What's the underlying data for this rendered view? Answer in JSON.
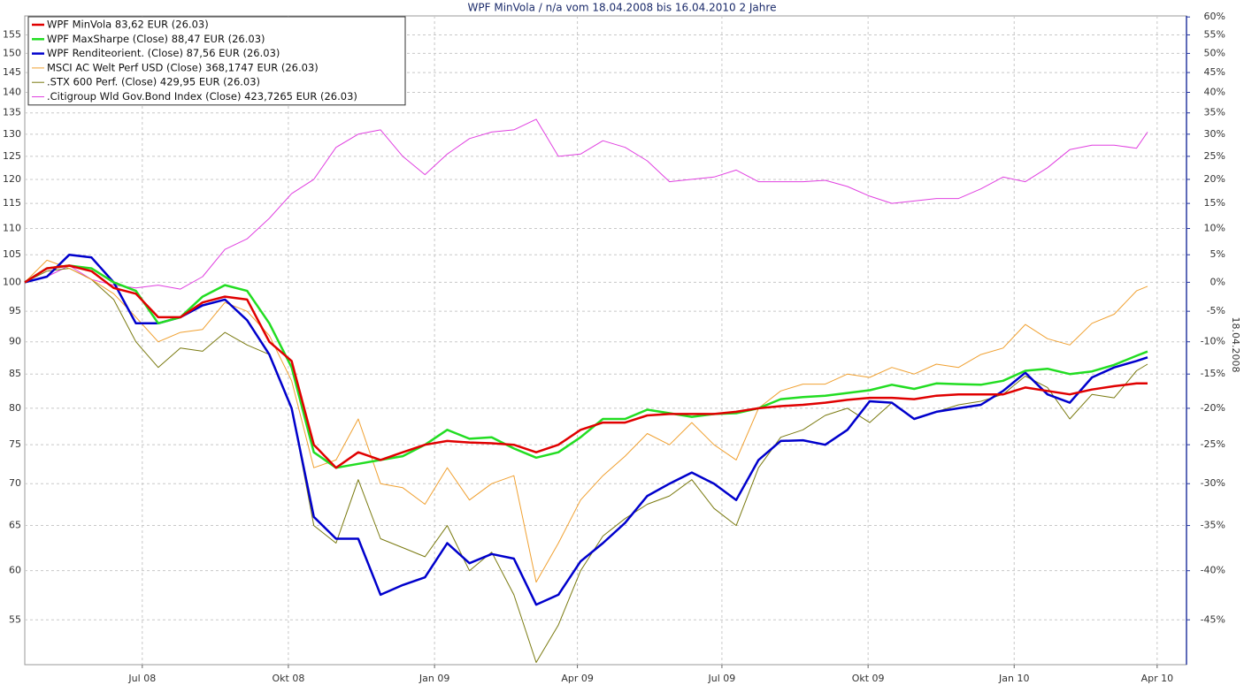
{
  "chart_data": {
    "type": "line",
    "title": "WPF MinVola / n/a vom 18.04.2008 bis 16.04.2010 2 Jahre",
    "y2_label": "18.04.2008",
    "ylog": true,
    "y2log": true,
    "grid": true,
    "legend": "top-left",
    "xlim": [
      0,
      104.5
    ],
    "xticks": [
      {
        "value": 10.57,
        "label": "Jul 08"
      },
      {
        "value": 23.71,
        "label": "Okt 08"
      },
      {
        "value": 36.86,
        "label": "Jan 09"
      },
      {
        "value": 49.71,
        "label": "Apr 09"
      },
      {
        "value": 62.71,
        "label": "Jul 09"
      },
      {
        "value": 75.86,
        "label": "Okt 09"
      },
      {
        "value": 89,
        "label": "Jan 10"
      },
      {
        "value": 101.86,
        "label": "Apr 10"
      }
    ],
    "ylim": [
      50.8,
      160.3
    ],
    "yticks": [
      55,
      60,
      65,
      70,
      75,
      80,
      85,
      90,
      95,
      100,
      105,
      110,
      115,
      120,
      125,
      130,
      135,
      140,
      145,
      150,
      155
    ],
    "y2lim": [
      -49.2,
      60.3
    ],
    "y2ticks": [
      {
        "value": -45,
        "label": "-45%"
      },
      {
        "value": -40,
        "label": "-40%"
      },
      {
        "value": -35,
        "label": "-35%"
      },
      {
        "value": -30,
        "label": "-30%"
      },
      {
        "value": -25,
        "label": "-25%"
      },
      {
        "value": -20,
        "label": "-20%"
      },
      {
        "value": -15,
        "label": "-15%"
      },
      {
        "value": -10,
        "label": "-10%"
      },
      {
        "value": -5,
        "label": "-5%"
      },
      {
        "value": 0,
        "label": "0%"
      },
      {
        "value": 5,
        "label": "5%"
      },
      {
        "value": 10,
        "label": "10%"
      },
      {
        "value": 15,
        "label": "15%"
      },
      {
        "value": 20,
        "label": "20%"
      },
      {
        "value": 25,
        "label": "25%"
      },
      {
        "value": 30,
        "label": "30%"
      },
      {
        "value": 35,
        "label": "35%"
      },
      {
        "value": 40,
        "label": "40%"
      },
      {
        "value": 45,
        "label": "45%"
      },
      {
        "value": 50,
        "label": "50%"
      },
      {
        "value": 55,
        "label": "55%"
      },
      {
        "value": 60,
        "label": "60%"
      }
    ],
    "x": [
      0,
      2,
      4,
      6,
      8,
      10,
      12,
      14,
      16,
      18,
      20,
      22,
      24,
      26,
      28,
      30,
      32,
      34,
      36,
      38,
      40,
      42,
      44,
      46,
      48,
      50,
      52,
      54,
      56,
      58,
      60,
      62,
      64,
      66,
      68,
      70,
      72,
      74,
      76,
      78,
      80,
      82,
      84,
      86,
      88,
      90,
      92,
      94,
      96,
      98,
      100,
      101
    ],
    "series": [
      {
        "name": "WPF MinVola 83,62 EUR (26.03)",
        "color": "#e00000",
        "width": 2.5,
        "values": [
          100,
          102.5,
          103,
          102,
          99,
          98,
          94,
          94,
          96.5,
          97.5,
          97,
          90,
          87,
          75,
          72,
          74,
          73,
          74,
          75,
          75.5,
          75.3,
          75.2,
          75,
          74,
          75,
          77,
          78,
          78,
          79,
          79.2,
          79.2,
          79.2,
          79.5,
          80,
          80.3,
          80.5,
          80.8,
          81.2,
          81.5,
          81.5,
          81.3,
          81.8,
          82,
          82,
          82,
          83,
          82.5,
          82,
          82.7,
          83.2,
          83.6,
          83.62
        ]
      },
      {
        "name": "WPF MaxSharpe (Close) 88,47 EUR (26.03)",
        "color": "#22dd22",
        "width": 2.5,
        "values": [
          100,
          102.5,
          103,
          102.5,
          100,
          98.5,
          93,
          94,
          97.5,
          99.5,
          98.5,
          93,
          86,
          74,
          72,
          72.5,
          73,
          73.5,
          75,
          77,
          75.8,
          76,
          74.5,
          73.3,
          74,
          76,
          78.5,
          78.5,
          79.8,
          79.3,
          78.8,
          79.2,
          79.3,
          80,
          81.3,
          81.6,
          81.8,
          82.2,
          82.6,
          83.4,
          82.8,
          83.6,
          83.5,
          83.4,
          84,
          85.5,
          85.8,
          85,
          85.4,
          86.4,
          87.8,
          88.47
        ]
      },
      {
        "name": "WPF Renditeorient. (Close) 87,56 EUR (26.03)",
        "color": "#0000cc",
        "width": 2.5,
        "values": [
          100,
          101,
          105,
          104.5,
          100,
          93,
          93,
          94,
          96,
          97,
          93.5,
          88,
          80,
          66,
          63.5,
          63.5,
          57.5,
          58.5,
          59.3,
          63,
          60.8,
          61.8,
          61.3,
          56.5,
          57.5,
          61,
          63,
          65.3,
          68.5,
          70,
          71.4,
          70,
          68,
          73,
          75.5,
          75.6,
          75,
          77,
          81,
          80.8,
          78.5,
          79.5,
          80,
          80.5,
          82.5,
          85.2,
          82,
          80.8,
          84.5,
          86,
          87,
          87.56
        ]
      },
      {
        "name": "MSCI AC Welt Perf USD (Close) 368,1747 EUR (26.03)",
        "color": "#f0a030",
        "width": 1,
        "values": [
          100,
          104,
          102.5,
          100.5,
          98,
          94,
          90,
          91.5,
          92,
          96.5,
          95,
          91,
          84,
          72,
          73,
          78.5,
          70,
          69.5,
          67.5,
          72,
          68,
          70,
          71,
          58.8,
          63,
          68,
          71,
          73.5,
          76.5,
          75,
          78,
          75,
          73,
          80,
          82.5,
          83.5,
          83.5,
          85,
          84.5,
          86,
          85,
          86.5,
          86,
          88,
          89,
          92.8,
          90.5,
          89.5,
          93,
          94.5,
          98.5,
          99.3
        ]
      },
      {
        "name": ".STX 600 Perf. (Close) 429,95 EUR (26.03)",
        "color": "#7a7a10",
        "width": 1,
        "values": [
          100,
          102,
          102.5,
          100.5,
          97,
          90,
          86,
          89,
          88.5,
          91.5,
          89.5,
          88,
          80,
          65,
          63,
          70.5,
          63.5,
          62.5,
          61.5,
          65,
          60,
          62,
          57.5,
          51,
          54.5,
          60,
          63.8,
          65.8,
          67.5,
          68.5,
          70.5,
          67,
          65,
          72,
          76,
          77,
          79,
          80,
          78,
          80.8,
          78.5,
          79.5,
          80.5,
          81,
          82,
          84.7,
          83,
          78.5,
          82,
          81.5,
          85.5,
          86.5
        ]
      },
      {
        "name": ".Citigroup Wld Gov.Bond Index (Close) 423,7265 EUR (26.03)",
        "color": "#e040e0",
        "width": 1,
        "values": [
          100,
          101,
          103,
          100.5,
          99.5,
          99,
          99.5,
          98.8,
          101,
          106,
          108,
          112,
          117,
          120,
          127,
          130,
          131,
          125,
          121,
          125.5,
          129,
          130.5,
          131,
          133.5,
          125,
          125.5,
          128.5,
          127,
          124,
          119.5,
          120,
          120.5,
          122,
          119.5,
          119.5,
          119.5,
          119.8,
          118.5,
          116.5,
          115,
          115.5,
          116,
          116,
          118,
          120.5,
          119.5,
          122.5,
          126.5,
          127.5,
          127.5,
          126.8,
          130.5
        ]
      }
    ]
  }
}
